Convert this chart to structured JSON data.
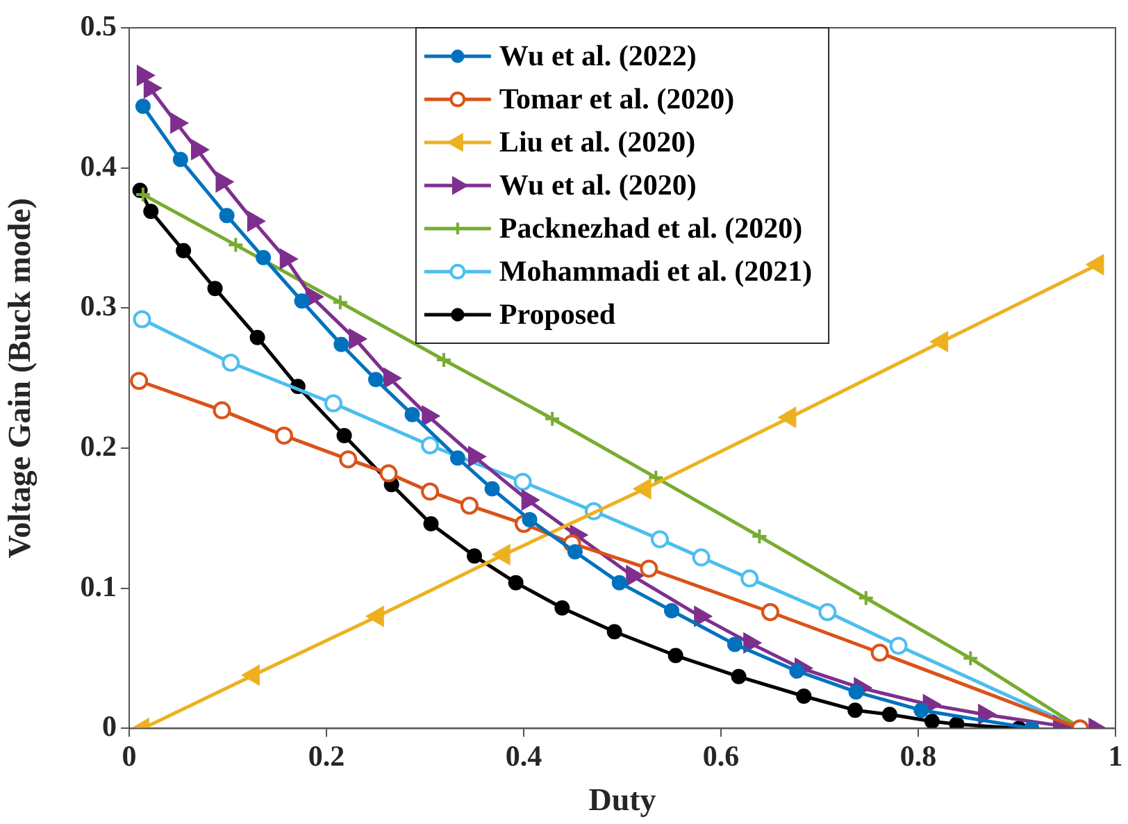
{
  "chart_data": {
    "type": "line",
    "xlabel": "Duty",
    "ylabel": "Voltage Gain (Buck mode)",
    "xlim": [
      0,
      1
    ],
    "xticks": [
      0,
      0.2,
      0.4,
      0.6,
      0.8,
      1
    ],
    "ylim": [
      0,
      0.5
    ],
    "yticks": [
      0,
      0.1,
      0.2,
      0.3,
      0.4,
      0.5
    ],
    "grid": false,
    "legend": "top",
    "line_style": "solid",
    "series": [
      {
        "name": "Wu et al. (2022)",
        "color": "#0072bd",
        "marker": "circle",
        "x": [
          0.014,
          0.052,
          0.099,
          0.136,
          0.175,
          0.215,
          0.25,
          0.287,
          0.333,
          0.368,
          0.406,
          0.452,
          0.497,
          0.55,
          0.614,
          0.677,
          0.737,
          0.803,
          0.915
        ],
        "values": [
          0.444,
          0.406,
          0.366,
          0.336,
          0.305,
          0.274,
          0.249,
          0.224,
          0.193,
          0.171,
          0.149,
          0.126,
          0.104,
          0.084,
          0.06,
          0.041,
          0.026,
          0.013,
          0
        ]
      },
      {
        "name": "Tomar et al. (2020)",
        "color": "#d95319",
        "marker": "circle-open",
        "x": [
          0.01,
          0.094,
          0.157,
          0.222,
          0.263,
          0.305,
          0.345,
          0.4,
          0.449,
          0.527,
          0.65,
          0.761,
          0.964
        ],
        "values": [
          0.248,
          0.227,
          0.209,
          0.192,
          0.182,
          0.169,
          0.159,
          0.146,
          0.132,
          0.114,
          0.083,
          0.054,
          0
        ]
      },
      {
        "name": "Liu et al. (2020)",
        "color": "#edb120",
        "marker": "triangle-left",
        "x": [
          0.014,
          0.126,
          0.252,
          0.38,
          0.523,
          0.67,
          0.824,
          0.982
        ],
        "values": [
          0,
          0.038,
          0.08,
          0.124,
          0.171,
          0.222,
          0.276,
          0.331
        ]
      },
      {
        "name": "Wu et al. (2020)",
        "color": "#7e2f8e",
        "marker": "triangle-right",
        "x": [
          0.014,
          0.021,
          0.048,
          0.069,
          0.094,
          0.126,
          0.159,
          0.185,
          0.229,
          0.264,
          0.303,
          0.35,
          0.404,
          0.453,
          0.51,
          0.579,
          0.629,
          0.681,
          0.741,
          0.811,
          0.867,
          0.943,
          0.979
        ],
        "values": [
          0.466,
          0.457,
          0.432,
          0.413,
          0.39,
          0.362,
          0.335,
          0.308,
          0.278,
          0.25,
          0.223,
          0.194,
          0.163,
          0.138,
          0.109,
          0.08,
          0.061,
          0.043,
          0.029,
          0.017,
          0.01,
          0.002,
          0
        ]
      },
      {
        "name": "Packnezhad et al. (2020)",
        "color": "#77ac30",
        "marker": "cross",
        "x": [
          0.014,
          0.108,
          0.214,
          0.319,
          0.429,
          0.534,
          0.639,
          0.747,
          0.853,
          0.965
        ],
        "values": [
          0.381,
          0.345,
          0.304,
          0.263,
          0.221,
          0.179,
          0.137,
          0.093,
          0.05,
          0
        ]
      },
      {
        "name": "Mohammadi et al. (2021)",
        "color": "#4dbeee",
        "marker": "circle-open",
        "x": [
          0.013,
          0.103,
          0.207,
          0.305,
          0.399,
          0.471,
          0.538,
          0.58,
          0.629,
          0.708,
          0.78,
          0.964
        ],
        "values": [
          0.292,
          0.261,
          0.232,
          0.202,
          0.176,
          0.155,
          0.135,
          0.122,
          0.107,
          0.083,
          0.059,
          0
        ]
      },
      {
        "name": "Proposed",
        "color": "#000000",
        "marker": "circle",
        "x": [
          0.011,
          0.022,
          0.055,
          0.087,
          0.13,
          0.171,
          0.218,
          0.266,
          0.306,
          0.35,
          0.392,
          0.439,
          0.492,
          0.554,
          0.618,
          0.684,
          0.736,
          0.771,
          0.814,
          0.839,
          0.902
        ],
        "values": [
          0.384,
          0.369,
          0.341,
          0.314,
          0.279,
          0.244,
          0.209,
          0.174,
          0.146,
          0.123,
          0.104,
          0.086,
          0.069,
          0.052,
          0.037,
          0.023,
          0.013,
          0.01,
          0.005,
          0.003,
          0
        ]
      }
    ]
  }
}
